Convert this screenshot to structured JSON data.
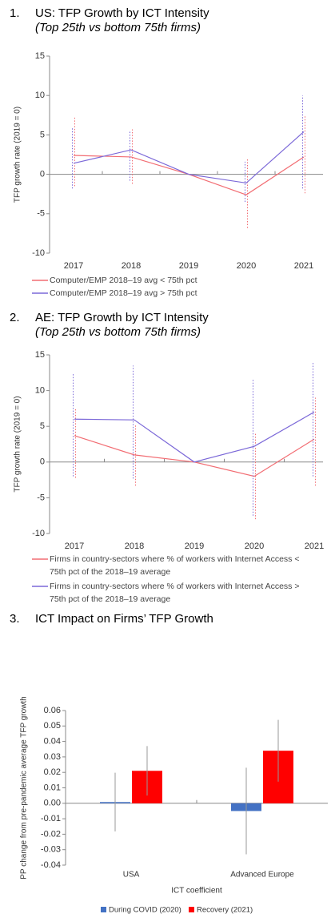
{
  "chart_data": [
    {
      "type": "line",
      "number": "1.",
      "title": "US: TFP Growth by ICT Intensity",
      "subtitle": "(Top 25th vs bottom 75th firms)",
      "y_label": "TFP growth rate (2019 = 0)",
      "categories": [
        "2017",
        "2018",
        "2019",
        "2020",
        "2021"
      ],
      "series": [
        {
          "name": "Computer/EMP 2018–19 avg < 75th pct",
          "color": "#f26d73",
          "values": [
            2.4,
            2.2,
            0,
            -2.6,
            2.2
          ],
          "lower": [
            -1.5,
            -1.2,
            null,
            -6.8,
            -2.4
          ],
          "upper": [
            7.2,
            5.7,
            null,
            2.0,
            7.5
          ]
        },
        {
          "name": "Computer/EMP 2018–19 avg > 75th pct",
          "color": "#7b68d8",
          "values": [
            1.4,
            3.1,
            0,
            -1.1,
            5.4
          ],
          "lower": [
            -1.8,
            -0.8,
            null,
            -3.5,
            -1.8
          ],
          "upper": [
            6.0,
            5.5,
            null,
            1.6,
            10.0
          ]
        }
      ],
      "ylim": [
        -10,
        15
      ],
      "yticks": [
        -10,
        -5,
        0,
        5,
        10,
        15
      ],
      "legend": "bottom"
    },
    {
      "type": "line",
      "number": "2.",
      "title": "AE: TFP Growth by ICT Intensity",
      "subtitle": "(Top 25th vs bottom 75th firms)",
      "y_label": "TFP growth rate (2019 = 0)",
      "categories": [
        "2017",
        "2018",
        "2019",
        "2020",
        "2021"
      ],
      "series": [
        {
          "name": "Firms in country-sectors where % of workers with Internet Access < 75th pct of the 2018–19 average",
          "color": "#f26d73",
          "values": [
            3.7,
            1.0,
            0,
            -2.0,
            3.2
          ],
          "lower": [
            -2.2,
            -3.3,
            null,
            -8.0,
            -3.3
          ],
          "upper": [
            7.5,
            5.2,
            null,
            4.0,
            9.0
          ]
        },
        {
          "name": "Firms in country-sectors where % of workers with Internet Access > 75th pct of the 2018–19 average",
          "color": "#7b68d8",
          "values": [
            6.0,
            5.9,
            0,
            2.2,
            7.0
          ],
          "lower": [
            -2.0,
            -2.3,
            null,
            -7.5,
            -2.0
          ],
          "upper": [
            12.5,
            13.5,
            null,
            11.5,
            14.0
          ]
        }
      ],
      "ylim": [
        -10,
        15
      ],
      "yticks": [
        -10,
        -5,
        0,
        5,
        10,
        15
      ],
      "legend": "bottom"
    },
    {
      "type": "bar",
      "number": "3.",
      "title": "ICT Impact on Firms’ TFP Growth",
      "y_label": "PP change from pre-pandemic average TFP growth",
      "x_label": "ICT coefficient",
      "categories": [
        "USA",
        "Advanced Europe"
      ],
      "series": [
        {
          "name": "During COVID (2020)",
          "color": "#4472c4",
          "values": [
            0.0008,
            -0.005
          ],
          "errors": [
            0.019,
            0.028
          ]
        },
        {
          "name": "Recovery (2021)",
          "color": "#ff0000",
          "values": [
            0.021,
            0.034
          ],
          "errors": [
            0.016,
            0.02
          ]
        }
      ],
      "ylim": [
        -0.04,
        0.06
      ],
      "yticks": [
        -0.04,
        -0.03,
        -0.02,
        -0.01,
        {
          "value": 0,
          "label": "0.00"
        },
        0.01,
        0.02,
        0.03,
        0.04,
        0.05,
        0.06
      ],
      "legend": "bottom"
    }
  ]
}
